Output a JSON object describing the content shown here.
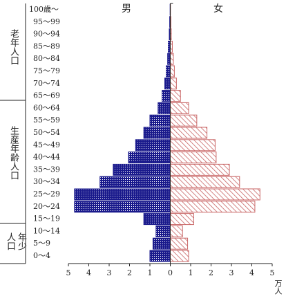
{
  "chart_data": {
    "type": "pyramid",
    "categories": [
      "0～4",
      "5～9",
      "10～14",
      "15～19",
      "20～24",
      "25～29",
      "30～34",
      "35～39",
      "40～44",
      "45～49",
      "50～54",
      "55～59",
      "60～64",
      "65～69",
      "70～74",
      "75～79",
      "80～84",
      "85～89",
      "90～94",
      "95～99",
      "100歳～"
    ],
    "series": [
      {
        "name": "男",
        "color": "#1a1a8c",
        "values": [
          1.0,
          0.85,
          0.7,
          1.3,
          4.7,
          4.7,
          3.45,
          2.8,
          2.05,
          1.7,
          1.3,
          1.0,
          0.6,
          0.4,
          0.27,
          0.2,
          0.13,
          0.1,
          0.05,
          0.03,
          0.01
        ]
      },
      {
        "name": "女",
        "color": "#c86464",
        "values": [
          0.9,
          0.85,
          0.6,
          1.15,
          4.15,
          4.4,
          3.4,
          2.9,
          2.25,
          2.2,
          1.8,
          1.3,
          0.9,
          0.5,
          0.3,
          0.2,
          0.15,
          0.1,
          0.05,
          0.03,
          0.01
        ]
      }
    ],
    "xlim": [
      -5,
      5
    ],
    "xticks": [
      {
        "value": -5,
        "label": "5"
      },
      {
        "value": -4,
        "label": "4"
      },
      {
        "value": -3,
        "label": "3"
      },
      {
        "value": -2,
        "label": "2"
      },
      {
        "value": -1,
        "label": "1"
      },
      0,
      1,
      2,
      3,
      4,
      5
    ],
    "x_label": "万人",
    "groups": [
      "年少人口",
      "生産年齢人口",
      "老年人口"
    ]
  }
}
